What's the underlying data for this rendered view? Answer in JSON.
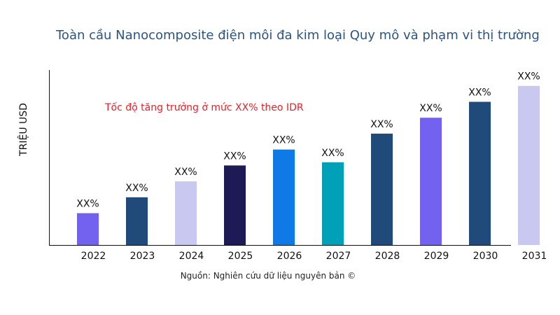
{
  "chart_data": {
    "type": "bar",
    "title": "Toàn cầu Nanocomposite điện môi đa kim loại Quy mô và phạm vi thị trường",
    "ylabel": "TRIỆU USD",
    "xlabel": "",
    "annotation": "Tốc độ tăng trưởng ở mức XX% theo IDR",
    "source": "Nguồn: Nghiên cứu dữ liệu nguyên bản ©",
    "categories": [
      "2022",
      "2023",
      "2024",
      "2025",
      "2026",
      "2027",
      "2028",
      "2029",
      "2030",
      "2031"
    ],
    "values": [
      2.0,
      3.0,
      4.0,
      5.0,
      6.0,
      5.2,
      7.0,
      8.0,
      9.0,
      10.0
    ],
    "data_labels": [
      "XX%",
      "XX%",
      "XX%",
      "XX%",
      "XX%",
      "XX%",
      "XX%",
      "XX%",
      "XX%",
      "XX%"
    ],
    "colors": [
      "#7362f0",
      "#1f4a7a",
      "#c8c8f0",
      "#1e1a55",
      "#0f7ae5",
      "#00a0b8",
      "#1f4a7a",
      "#7362f0",
      "#1f4a7a",
      "#c8c8f0"
    ],
    "ylim": [
      0,
      11
    ],
    "grid": false,
    "legend": "none"
  }
}
